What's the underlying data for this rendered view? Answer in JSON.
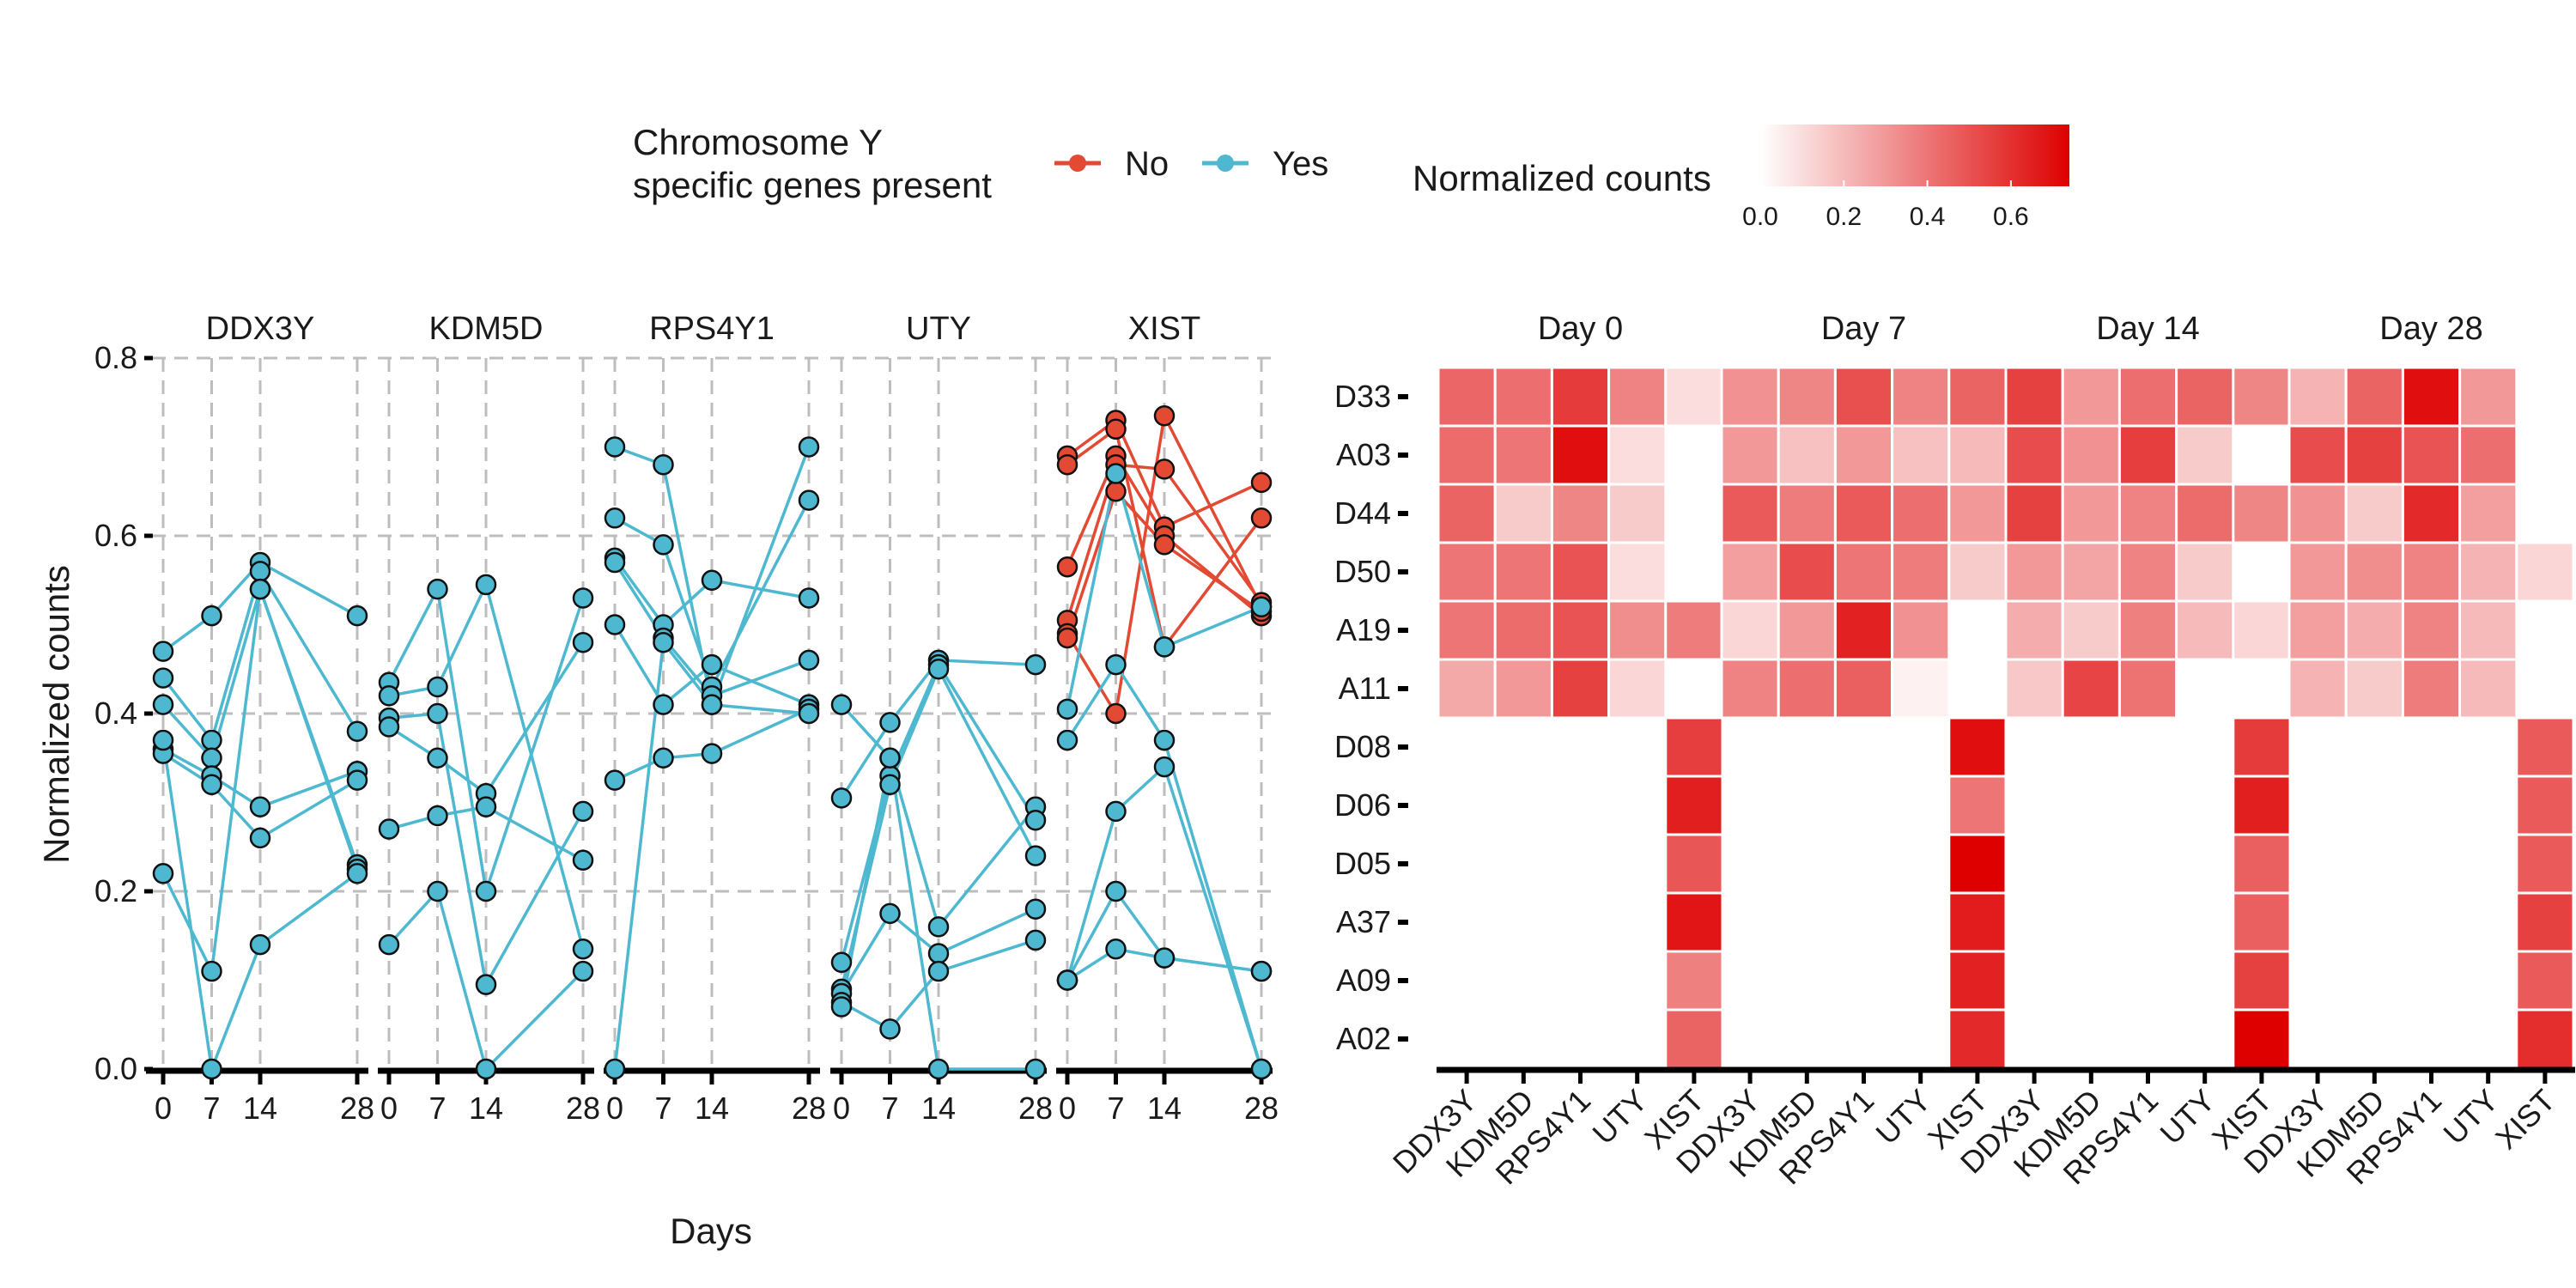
{
  "chart_data": [
    {
      "type": "line",
      "facet_by": "gene",
      "facets": [
        "DDX3Y",
        "KDM5D",
        "RPS4Y1",
        "UTY",
        "XIST"
      ],
      "xlabel": "Days",
      "ylabel": "Normalized counts",
      "x_ticks": [
        0,
        7,
        14,
        28
      ],
      "x_tick_labels": [
        "0",
        "7",
        "14",
        "28"
      ],
      "y_ticks": [
        0,
        0.2,
        0.4,
        0.6,
        0.8
      ],
      "y_tick_labels": [
        "0.0",
        "0.2",
        "0.4",
        "0.6",
        "0.8"
      ],
      "ylim": [
        0,
        0.8
      ],
      "grid": true,
      "legend": {
        "title_lines": [
          "Chromosome Y",
          "specific genes present"
        ],
        "placement": "top",
        "entries": [
          {
            "label": "No",
            "color": "#e34a33"
          },
          {
            "label": "Yes",
            "color": "#4db8d0"
          }
        ]
      },
      "series": [
        {
          "gene": "DDX3Y",
          "group": "Yes",
          "x": [
            0,
            7,
            14,
            28
          ],
          "y": [
            0.47,
            0.51,
            0.57,
            0.51
          ]
        },
        {
          "gene": "DDX3Y",
          "group": "Yes",
          "x": [
            0,
            7,
            14,
            28
          ],
          "y": [
            0.44,
            0.37,
            0.56,
            0.38
          ]
        },
        {
          "gene": "DDX3Y",
          "group": "Yes",
          "x": [
            0,
            7,
            14,
            28
          ],
          "y": [
            0.41,
            0.35,
            0.54,
            0.23
          ]
        },
        {
          "gene": "DDX3Y",
          "group": "Yes",
          "x": [
            0,
            7,
            14,
            28
          ],
          "y": [
            0.36,
            0.33,
            0.295,
            0.335
          ]
        },
        {
          "gene": "DDX3Y",
          "group": "Yes",
          "x": [
            0,
            7,
            14,
            28
          ],
          "y": [
            0.355,
            0.32,
            0.26,
            0.325
          ]
        },
        {
          "gene": "DDX3Y",
          "group": "Yes",
          "x": [
            0,
            7,
            14,
            28
          ],
          "y": [
            0.22,
            0.11,
            0.54,
            0.225
          ]
        },
        {
          "gene": "DDX3Y",
          "group": "Yes",
          "x": [
            0,
            7,
            14,
            28
          ],
          "y": [
            0.37,
            0.0,
            0.14,
            0.22
          ]
        },
        {
          "gene": "KDM5D",
          "group": "Yes",
          "x": [
            0,
            7,
            14,
            28
          ],
          "y": [
            0.435,
            0.54,
            0.2,
            0.53
          ]
        },
        {
          "gene": "KDM5D",
          "group": "Yes",
          "x": [
            0,
            7,
            14,
            28
          ],
          "y": [
            0.42,
            0.43,
            0.545,
            0.135
          ]
        },
        {
          "gene": "KDM5D",
          "group": "Yes",
          "x": [
            0,
            7,
            14,
            28
          ],
          "y": [
            0.395,
            0.4,
            0.095,
            0.29
          ]
        },
        {
          "gene": "KDM5D",
          "group": "Yes",
          "x": [
            0,
            7,
            14,
            28
          ],
          "y": [
            0.385,
            0.35,
            0.31,
            0.48
          ]
        },
        {
          "gene": "KDM5D",
          "group": "Yes",
          "x": [
            0,
            7,
            14,
            28
          ],
          "y": [
            0.27,
            0.285,
            0.295,
            0.235
          ]
        },
        {
          "gene": "KDM5D",
          "group": "Yes",
          "x": [
            0,
            7,
            14,
            28
          ],
          "y": [
            0.14,
            0.2,
            0.0,
            0.11
          ]
        },
        {
          "gene": "RPS4Y1",
          "group": "Yes",
          "x": [
            0,
            7,
            14,
            28
          ],
          "y": [
            0.7,
            0.68,
            0.41,
            0.7
          ]
        },
        {
          "gene": "RPS4Y1",
          "group": "Yes",
          "x": [
            0,
            7,
            14,
            28
          ],
          "y": [
            0.62,
            0.59,
            0.43,
            0.64
          ]
        },
        {
          "gene": "RPS4Y1",
          "group": "Yes",
          "x": [
            0,
            7,
            14,
            28
          ],
          "y": [
            0.575,
            0.5,
            0.55,
            0.53
          ]
        },
        {
          "gene": "RPS4Y1",
          "group": "Yes",
          "x": [
            0,
            7,
            14,
            28
          ],
          "y": [
            0.57,
            0.485,
            0.42,
            0.46
          ]
        },
        {
          "gene": "RPS4Y1",
          "group": "Yes",
          "x": [
            0,
            7,
            14,
            28
          ],
          "y": [
            0.5,
            0.41,
            0.455,
            0.41
          ]
        },
        {
          "gene": "RPS4Y1",
          "group": "Yes",
          "x": [
            0,
            7,
            14,
            28
          ],
          "y": [
            0.325,
            0.35,
            0.355,
            0.405
          ]
        },
        {
          "gene": "RPS4Y1",
          "group": "Yes",
          "x": [
            0,
            7,
            14,
            28
          ],
          "y": [
            0.0,
            0.48,
            0.41,
            0.4
          ]
        },
        {
          "gene": "UTY",
          "group": "Yes",
          "x": [
            0,
            7,
            14,
            28
          ],
          "y": [
            0.41,
            0.35,
            0.16,
            0.295
          ]
        },
        {
          "gene": "UTY",
          "group": "Yes",
          "x": [
            0,
            7,
            14,
            28
          ],
          "y": [
            0.305,
            0.39,
            0.46,
            0.455
          ]
        },
        {
          "gene": "UTY",
          "group": "Yes",
          "x": [
            0,
            7,
            14,
            28
          ],
          "y": [
            0.12,
            0.33,
            0.455,
            0.28
          ]
        },
        {
          "gene": "UTY",
          "group": "Yes",
          "x": [
            0,
            7,
            14,
            28
          ],
          "y": [
            0.09,
            0.32,
            0.45,
            0.24
          ]
        },
        {
          "gene": "UTY",
          "group": "Yes",
          "x": [
            0,
            7,
            14,
            28
          ],
          "y": [
            0.085,
            0.175,
            0.13,
            0.18
          ]
        },
        {
          "gene": "UTY",
          "group": "Yes",
          "x": [
            0,
            7,
            14,
            28
          ],
          "y": [
            0.075,
            0.045,
            0.11,
            0.145
          ]
        },
        {
          "gene": "UTY",
          "group": "Yes",
          "x": [
            0,
            7,
            14,
            28
          ],
          "y": [
            0.07,
            0.35,
            0.0,
            0.0
          ]
        },
        {
          "gene": "XIST",
          "group": "No",
          "x": [
            0,
            7,
            14,
            28
          ],
          "y": [
            0.69,
            0.73,
            0.61,
            0.66
          ]
        },
        {
          "gene": "XIST",
          "group": "No",
          "x": [
            0,
            7,
            14,
            28
          ],
          "y": [
            0.68,
            0.72,
            0.475,
            0.62
          ]
        },
        {
          "gene": "XIST",
          "group": "No",
          "x": [
            0,
            7,
            14,
            28
          ],
          "y": [
            0.565,
            0.69,
            0.6,
            0.51
          ]
        },
        {
          "gene": "XIST",
          "group": "No",
          "x": [
            0,
            7,
            14,
            28
          ],
          "y": [
            0.505,
            0.68,
            0.675,
            0.525
          ]
        },
        {
          "gene": "XIST",
          "group": "No",
          "x": [
            0,
            7,
            14,
            28
          ],
          "y": [
            0.49,
            0.4,
            0.735,
            0.52
          ]
        },
        {
          "gene": "XIST",
          "group": "No",
          "x": [
            0,
            7,
            14,
            28
          ],
          "y": [
            0.485,
            0.65,
            0.59,
            0.515
          ]
        },
        {
          "gene": "XIST",
          "group": "Yes",
          "x": [
            0,
            7,
            14,
            28
          ],
          "y": [
            0.405,
            0.67,
            0.475,
            0.52
          ]
        },
        {
          "gene": "XIST",
          "group": "Yes",
          "x": [
            0,
            7,
            14,
            28
          ],
          "y": [
            0.37,
            0.455,
            0.37,
            0.0
          ]
        },
        {
          "gene": "XIST",
          "group": "Yes",
          "x": [
            0,
            7,
            14,
            28
          ],
          "y": [
            0.1,
            0.29,
            0.34,
            0.0
          ]
        },
        {
          "gene": "XIST",
          "group": "Yes",
          "x": [
            0,
            7,
            14,
            28
          ],
          "y": [
            0.1,
            0.2,
            0.125,
            0.11
          ]
        },
        {
          "gene": "XIST",
          "group": "Yes",
          "x": [
            0,
            7,
            14,
            28
          ],
          "y": [
            0.1,
            0.135,
            0.125,
            0.11
          ]
        }
      ]
    },
    {
      "type": "heatmap",
      "facet_by": "day",
      "facets": [
        "Day  0",
        "Day  7",
        "Day  14",
        "Day  28"
      ],
      "rows": [
        "D33",
        "A03",
        "D44",
        "D50",
        "A19",
        "A11",
        "D08",
        "D06",
        "D05",
        "A37",
        "A09",
        "A02"
      ],
      "columns": [
        "DDX3Y",
        "KDM5D",
        "RPS4Y1",
        "UTY",
        "XIST"
      ],
      "legend": {
        "title": "Normalized counts",
        "placement": "top",
        "ticks": [
          0.0,
          0.2,
          0.4,
          0.6
        ],
        "tick_labels": [
          "0.0",
          "0.2",
          "0.4",
          "0.6"
        ],
        "range": [
          0,
          0.74
        ],
        "colors": [
          "#ffffff",
          "#de0000"
        ]
      },
      "values": [
        [
          [
            0.44,
            0.42,
            0.57,
            0.36,
            0.1
          ],
          [
            0.43,
            0.4,
            0.7,
            0.1,
            null
          ],
          [
            0.45,
            0.15,
            0.35,
            0.15,
            null
          ],
          [
            0.4,
            0.4,
            0.5,
            0.1,
            null
          ],
          [
            0.4,
            0.43,
            0.5,
            0.33,
            0.38
          ],
          [
            0.25,
            0.3,
            0.55,
            0.12,
            null
          ],
          [
            null,
            null,
            null,
            null,
            0.56
          ],
          [
            null,
            null,
            null,
            null,
            0.65
          ],
          [
            null,
            null,
            null,
            null,
            0.49
          ],
          [
            null,
            null,
            null,
            null,
            0.68
          ],
          [
            null,
            null,
            null,
            null,
            0.37
          ],
          [
            null,
            null,
            null,
            null,
            0.45
          ]
        ],
        [
          [
            0.32,
            0.35,
            0.51,
            0.36,
            0.45
          ],
          [
            0.3,
            0.18,
            0.3,
            0.18,
            0.2
          ],
          [
            0.48,
            0.38,
            0.48,
            0.42,
            0.3
          ],
          [
            0.28,
            0.52,
            0.4,
            0.38,
            0.15
          ],
          [
            0.12,
            0.3,
            0.64,
            0.32,
            null
          ],
          [
            0.36,
            0.42,
            0.46,
            0.04,
            null
          ],
          [
            null,
            null,
            null,
            null,
            0.7
          ],
          [
            null,
            null,
            null,
            null,
            0.4
          ],
          [
            null,
            null,
            null,
            null,
            0.74
          ],
          [
            null,
            null,
            null,
            null,
            0.66
          ],
          [
            null,
            null,
            null,
            null,
            0.64
          ],
          [
            null,
            null,
            null,
            null,
            0.62
          ]
        ],
        [
          [
            0.55,
            0.3,
            0.42,
            0.45,
            0.35
          ],
          [
            0.52,
            0.32,
            0.56,
            0.15,
            null
          ],
          [
            0.55,
            0.3,
            0.36,
            0.43,
            0.35
          ],
          [
            0.3,
            0.26,
            0.36,
            0.15,
            null
          ],
          [
            0.24,
            0.15,
            0.37,
            0.2,
            0.12
          ],
          [
            0.16,
            0.54,
            0.41,
            null,
            null
          ],
          [
            null,
            null,
            null,
            null,
            0.57
          ],
          [
            null,
            null,
            null,
            null,
            0.65
          ],
          [
            null,
            null,
            null,
            null,
            0.46
          ],
          [
            null,
            null,
            null,
            null,
            0.46
          ],
          [
            null,
            null,
            null,
            null,
            0.55
          ],
          [
            null,
            null,
            null,
            null,
            0.74
          ]
        ],
        [
          [
            0.22,
            0.45,
            0.7,
            0.3,
            null
          ],
          [
            0.52,
            0.55,
            0.5,
            0.42,
            null
          ],
          [
            0.32,
            0.15,
            0.62,
            0.28,
            null
          ],
          [
            0.3,
            0.33,
            0.36,
            0.22,
            0.12
          ],
          [
            0.28,
            0.24,
            0.36,
            0.2,
            null
          ],
          [
            0.22,
            0.15,
            0.38,
            0.2,
            null
          ],
          [
            null,
            null,
            null,
            null,
            0.48
          ],
          [
            null,
            null,
            null,
            null,
            0.48
          ],
          [
            null,
            null,
            null,
            null,
            0.48
          ],
          [
            null,
            null,
            null,
            null,
            0.55
          ],
          [
            null,
            null,
            null,
            null,
            0.48
          ],
          [
            null,
            null,
            null,
            null,
            0.61
          ]
        ]
      ]
    }
  ]
}
